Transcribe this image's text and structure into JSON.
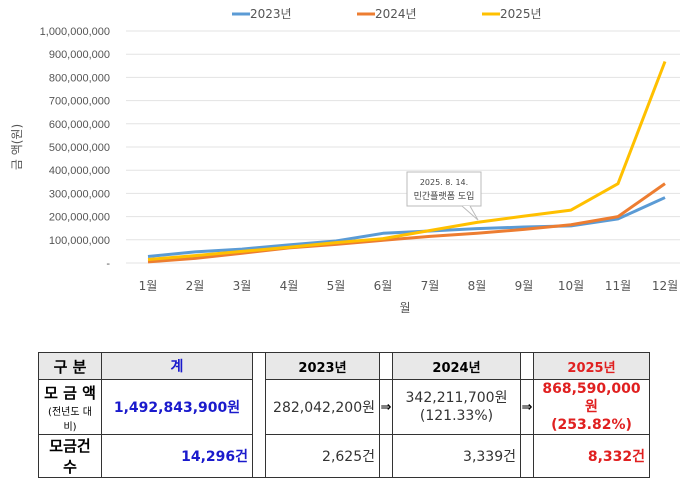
{
  "chart_data": {
    "type": "line",
    "ylabel": "금 액(원)",
    "xlabel": "월",
    "categories": [
      "1월",
      "2월",
      "3월",
      "4월",
      "5월",
      "6월",
      "7월",
      "8월",
      "9월",
      "10월",
      "11월",
      "12월"
    ],
    "yticks": [
      "-",
      "100,000,000",
      "200,000,000",
      "300,000,000",
      "400,000,000",
      "500,000,000",
      "600,000,000",
      "700,000,000",
      "800,000,000",
      "900,000,000",
      "1,000,000,000"
    ],
    "ylim": [
      0,
      1000000000
    ],
    "grid": true,
    "legend": "top",
    "series": [
      {
        "name": "2023년",
        "color": "#5b9bd5",
        "values": [
          28000000,
          48000000,
          60000000,
          78000000,
          95000000,
          128000000,
          138000000,
          148000000,
          155000000,
          160000000,
          190000000,
          282042200
        ]
      },
      {
        "name": "2024년",
        "color": "#ed7d31",
        "values": [
          5000000,
          20000000,
          42000000,
          65000000,
          80000000,
          98000000,
          115000000,
          128000000,
          145000000,
          165000000,
          200000000,
          342211700
        ]
      },
      {
        "name": "2025년",
        "color": "#ffc000",
        "values": [
          15000000,
          32000000,
          50000000,
          68000000,
          88000000,
          105000000,
          140000000,
          175000000,
          202000000,
          228000000,
          342000000,
          868590000
        ]
      }
    ],
    "annotation": {
      "line1": "2025. 8. 14.",
      "line2": "민간플랫폼 도입",
      "month": "8월"
    }
  },
  "table": {
    "header": {
      "label": "구 분",
      "total": "계",
      "y2023": "2023년",
      "y2024": "2024년",
      "y2025": "2025년"
    },
    "arrow": "⇒",
    "amount": {
      "label": "모 금 액",
      "sublabel": "(전년도 대비)",
      "total": "1,492,843,900원",
      "y2023": "282,042,200원",
      "y2024": "342,211,700원",
      "y2024_pct": "(121.33%)",
      "y2025": "868,590,000원",
      "y2025_pct": "(253.82%)"
    },
    "count": {
      "label": "모금건수",
      "total": "14,296건",
      "y2023": "2,625건",
      "y2024": "3,339건",
      "y2025": "8,332건"
    }
  }
}
